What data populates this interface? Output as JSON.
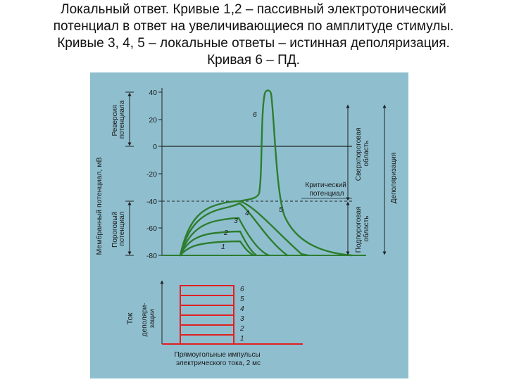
{
  "slide": {
    "title_lines": [
      "Локальный ответ. Кривые 1,2 – пассивный электротонический",
      "потенциал в ответ на увеличивающиеся по амплитуде стимулы.",
      "Кривые 3, 4, 5 – локальные ответы – истинная деполяризация.",
      "Кривая 6 – ПД."
    ]
  },
  "figure": {
    "background_color": "#8fbfcf",
    "curve_color": "#2e7d2f",
    "pulse_color": "#e02020",
    "top_panel": {
      "y_axis_label": "Мембранный потенциал, мВ",
      "y_ticks": [
        "40",
        "20",
        "0",
        "-20",
        "-40",
        "-60",
        "-80"
      ],
      "left_brackets": {
        "reversal": [
          "Реверсия",
          "потенциала"
        ],
        "threshold": [
          "Пороговый",
          "потенциал"
        ]
      },
      "right_brackets": {
        "suprathreshold": [
          "Сверхпороговая",
          "область"
        ],
        "subthreshold": [
          "Подпороговая",
          "область"
        ],
        "depolarization": "Деполяризация"
      },
      "critical_label": [
        "Критический",
        "потенциал"
      ],
      "curve_labels": [
        "1",
        "2",
        "3",
        "4",
        "5",
        "6"
      ]
    },
    "bottom_panel": {
      "axis_label": "Ток",
      "axis_sublabel": [
        "деполяри-",
        "зации"
      ],
      "pulse_labels": [
        "6",
        "5",
        "4",
        "3",
        "2",
        "1"
      ],
      "caption": [
        "Прямоугольные импульсы",
        "электрического тока, 2 мс"
      ]
    }
  }
}
